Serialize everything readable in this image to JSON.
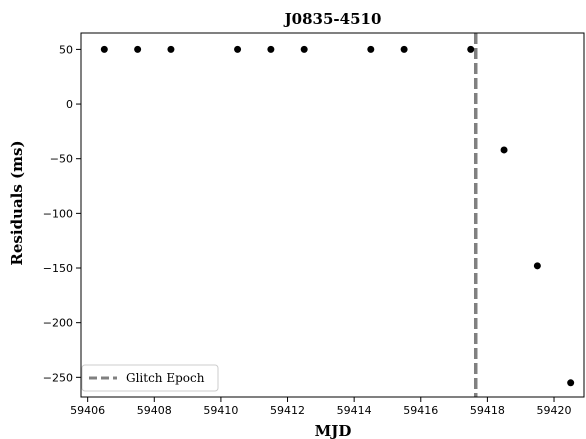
{
  "chart_data": {
    "type": "scatter",
    "title": "J0835-4510",
    "xlabel": "MJD",
    "ylabel": "Residuals (ms)",
    "xlim": [
      59405.8,
      59420.9
    ],
    "ylim": [
      -268,
      65
    ],
    "xticks": [
      59406,
      59408,
      59410,
      59412,
      59414,
      59416,
      59418,
      59420
    ],
    "yticks": [
      50,
      0,
      -50,
      -100,
      -150,
      -200,
      -250
    ],
    "ytick_labels": [
      "50",
      "0",
      "−50",
      "−100",
      "−150",
      "−200",
      "−250"
    ],
    "grid": false,
    "legend_position": "lower-left",
    "points": {
      "x": [
        59406.5,
        59407.5,
        59408.5,
        59410.5,
        59411.5,
        59412.5,
        59414.5,
        59415.5,
        59417.5,
        59418.5,
        59419.5,
        59420.5
      ],
      "y": [
        50,
        50,
        50,
        50,
        50,
        50,
        50,
        50,
        50,
        -42,
        -148,
        -255
      ]
    },
    "point_color": "#000000",
    "glitch_epoch": {
      "x": 59417.65,
      "label": "Glitch Epoch",
      "color": "#808080"
    }
  }
}
